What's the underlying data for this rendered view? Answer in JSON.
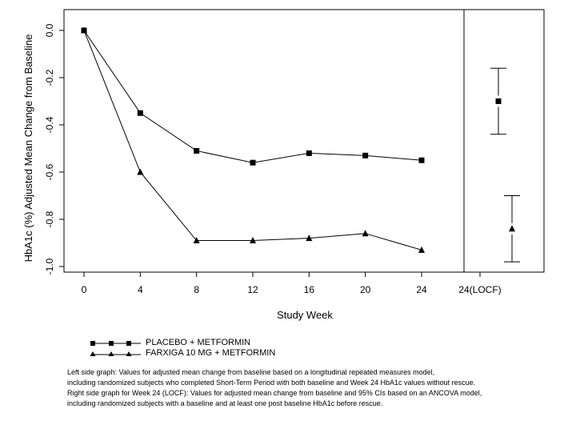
{
  "chart_data": {
    "type": "line",
    "ylabel": "HbA1c (%) Adjusted Mean Change from Baseline",
    "xlabel": "Study Week",
    "x": [
      0,
      4,
      8,
      12,
      16,
      20,
      24
    ],
    "x_tick_labels": [
      "0",
      "4",
      "8",
      "12",
      "16",
      "20",
      "24",
      "24(LOCF)"
    ],
    "y_tick_labels": [
      "0.0",
      "-0.2",
      "-0.4",
      "-0.6",
      "-0.8",
      "-1.0"
    ],
    "y_ticks": [
      0.0,
      -0.2,
      -0.4,
      -0.6,
      -0.8,
      -1.0
    ],
    "ylim": [
      -1.02,
      0.08
    ],
    "series": [
      {
        "name": "PLACEBO + METFORMIN",
        "marker": "square",
        "values": [
          0.0,
          -0.35,
          -0.51,
          -0.56,
          -0.52,
          -0.53,
          -0.55
        ]
      },
      {
        "name": "FARXIGA 10 MG + METFORMIN",
        "marker": "triangle",
        "values": [
          0.0,
          -0.6,
          -0.89,
          -0.89,
          -0.88,
          -0.86,
          -0.93
        ]
      }
    ],
    "locf": [
      {
        "name": "PLACEBO + METFORMIN",
        "marker": "square",
        "mean": -0.3,
        "ci_low": -0.44,
        "ci_high": -0.16
      },
      {
        "name": "FARXIGA 10 MG + METFORMIN",
        "marker": "triangle",
        "mean": -0.84,
        "ci_low": -0.98,
        "ci_high": -0.7
      }
    ],
    "grid": false
  },
  "legend": {
    "items": [
      {
        "label": "PLACEBO + METFORMIN",
        "marker": "square"
      },
      {
        "label": "FARXIGA 10 MG + METFORMIN",
        "marker": "triangle"
      }
    ]
  },
  "footnote": {
    "lines": [
      "Left side graph: Values for adjusted mean change from baseline based on a longitudinal repeated measures model,",
      "including randomized subjects who completed Short-Term Period with both baseline and Week 24 HbA1c values without rescue.",
      "Right side graph for Week 24 (LOCF): Values for adjusted mean change from baseline and 95% CIs based on an ANCOVA model,",
      "including randomized subjects with a baseline and at least one post baseline HbA1c before rescue."
    ]
  }
}
